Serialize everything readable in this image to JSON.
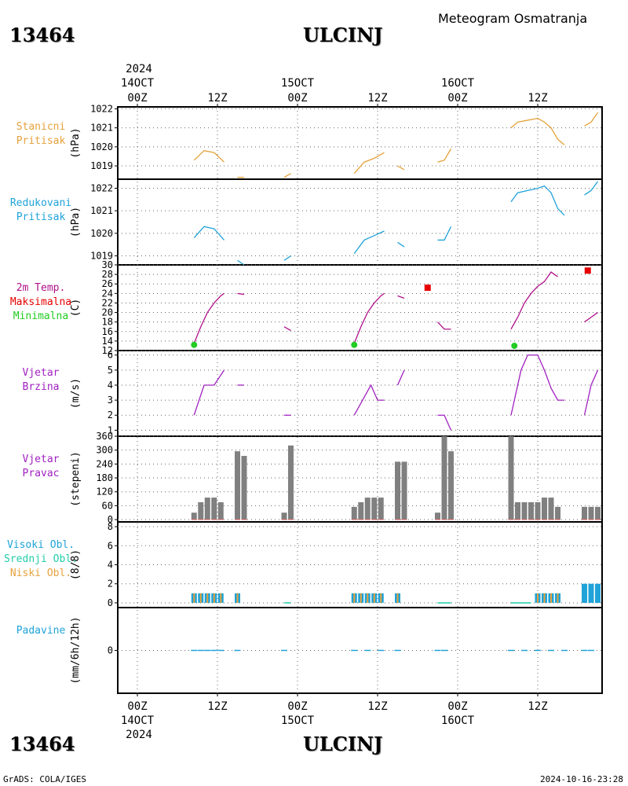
{
  "header": {
    "station_id": "13464",
    "station_name": "ULCINJ",
    "meteogram_title": "Meteogram Osmatranja",
    "year": "2024",
    "footer_left": "GrADS: COLA/IGES",
    "footer_right": "2024-10-16-23:28"
  },
  "time_axis": {
    "hour_labels": [
      "00Z",
      "12Z",
      "00Z",
      "12Z",
      "00Z",
      "12Z"
    ],
    "date_labels": [
      "14OCT",
      "15OCT",
      "16OCT"
    ],
    "year": "2024"
  },
  "colors": {
    "pressure": "#e6a23c",
    "reduced": "#1fa3d8",
    "temp": "#b0108a",
    "tmax": "#e60000",
    "tmin": "#22cc22",
    "wind": "#a020c0",
    "dir_bar": "#808080",
    "cloud_high": "#1fa3d8",
    "cloud_mid": "#22ccaa",
    "cloud_low": "#e6a23c",
    "precip": "#1fa3d8"
  },
  "chart_data": [
    {
      "type": "line",
      "panel": "pressure",
      "label_lines": [
        "Stanicni",
        "Pritisak"
      ],
      "unit": "(hPa)",
      "ylim": [
        1018.3,
        1022.1
      ],
      "yticks": [
        1019,
        1020,
        1021,
        1022
      ],
      "segments": [
        [
          [
            8.5,
            1019.3
          ],
          [
            10,
            1019.8
          ],
          [
            11.5,
            1019.7
          ],
          [
            13,
            1019.2
          ]
        ],
        [
          [
            15,
            1018.4
          ],
          [
            16,
            1018.4
          ]
        ],
        [
          [
            22,
            1018.4
          ],
          [
            23,
            1018.6
          ]
        ],
        [
          [
            32.5,
            1018.6
          ],
          [
            34,
            1019.2
          ],
          [
            35.5,
            1019.4
          ],
          [
            37,
            1019.7
          ]
        ],
        [
          [
            39,
            1019.0
          ],
          [
            40,
            1018.8
          ]
        ],
        [
          [
            45,
            1019.2
          ],
          [
            46,
            1019.3
          ],
          [
            47,
            1019.9
          ]
        ],
        [
          [
            56,
            1021.0
          ],
          [
            57,
            1021.3
          ],
          [
            58.5,
            1021.4
          ],
          [
            60,
            1021.5
          ],
          [
            61,
            1021.3
          ],
          [
            62,
            1021.0
          ],
          [
            63,
            1020.4
          ],
          [
            64,
            1020.1
          ]
        ],
        [
          [
            67,
            1021.1
          ],
          [
            68,
            1021.3
          ],
          [
            69,
            1021.8
          ]
        ]
      ]
    },
    {
      "type": "line",
      "panel": "reduced",
      "label_lines": [
        "Redukovani",
        "Pritisak"
      ],
      "unit": "(hPa)",
      "ylim": [
        1018.6,
        1022.4
      ],
      "yticks": [
        1019,
        1020,
        1021,
        1022
      ],
      "segments": [
        [
          [
            8.5,
            1019.8
          ],
          [
            10,
            1020.3
          ],
          [
            11.5,
            1020.2
          ],
          [
            13,
            1019.7
          ]
        ],
        [
          [
            15,
            1018.8
          ],
          [
            16,
            1018.6
          ]
        ],
        [
          [
            22,
            1018.8
          ],
          [
            23,
            1019.0
          ]
        ],
        [
          [
            32.5,
            1019.1
          ],
          [
            34,
            1019.7
          ],
          [
            35.5,
            1019.9
          ],
          [
            37,
            1020.1
          ]
        ],
        [
          [
            39,
            1019.6
          ],
          [
            40,
            1019.4
          ]
        ],
        [
          [
            45,
            1019.7
          ],
          [
            46,
            1019.7
          ],
          [
            47,
            1020.3
          ]
        ],
        [
          [
            56,
            1021.4
          ],
          [
            57,
            1021.8
          ],
          [
            58.5,
            1021.9
          ],
          [
            60,
            1022.0
          ],
          [
            61,
            1022.1
          ],
          [
            62,
            1021.8
          ],
          [
            63,
            1021.1
          ],
          [
            64,
            1020.8
          ]
        ],
        [
          [
            67,
            1021.7
          ],
          [
            68,
            1021.9
          ],
          [
            69,
            1022.3
          ]
        ]
      ]
    },
    {
      "type": "line",
      "panel": "temperature",
      "label_lines": [
        "2m Temp.",
        "Maksimalna",
        "Minimalna"
      ],
      "unit": "(C)",
      "ylim": [
        12,
        30
      ],
      "yticks": [
        12,
        14,
        16,
        18,
        20,
        22,
        24,
        26,
        28,
        30
      ],
      "segments": [
        [
          [
            8.5,
            13.5
          ],
          [
            9.5,
            17
          ],
          [
            10.5,
            20
          ],
          [
            11.5,
            22
          ],
          [
            12.5,
            23.5
          ],
          [
            13,
            24
          ]
        ],
        [
          [
            15,
            24
          ],
          [
            16,
            23.8
          ]
        ],
        [
          [
            22,
            17
          ],
          [
            23,
            16.2
          ]
        ],
        [
          [
            32.5,
            13.5
          ],
          [
            33.5,
            17
          ],
          [
            34.5,
            20
          ],
          [
            35.5,
            22
          ],
          [
            36.5,
            23.5
          ],
          [
            37,
            24
          ]
        ],
        [
          [
            39,
            23.5
          ],
          [
            40,
            23
          ]
        ],
        [
          [
            45,
            18
          ],
          [
            46,
            16.5
          ],
          [
            47,
            16.5
          ]
        ],
        [
          [
            56,
            16.5
          ],
          [
            57,
            19
          ],
          [
            58,
            22
          ],
          [
            59,
            24
          ],
          [
            60,
            25.5
          ],
          [
            61,
            26.5
          ],
          [
            62,
            28.5
          ],
          [
            63,
            27.5
          ]
        ],
        [
          [
            67,
            18
          ],
          [
            68,
            19
          ],
          [
            69,
            20
          ]
        ]
      ],
      "tmax": [
        [
          43.5,
          25.2
        ],
        [
          67.5,
          28.8
        ]
      ],
      "tmin": [
        [
          8.5,
          13.2
        ],
        [
          32.5,
          13.2
        ],
        [
          56.5,
          13.0
        ]
      ]
    },
    {
      "type": "line",
      "panel": "wind_speed",
      "label_lines": [
        "Vjetar",
        "Brzina"
      ],
      "unit": "(m/s)",
      "ylim": [
        0.6,
        6.3
      ],
      "yticks": [
        1,
        2,
        3,
        4,
        5,
        6
      ],
      "segments": [
        [
          [
            8.5,
            2
          ],
          [
            10,
            4
          ],
          [
            11.5,
            4
          ],
          [
            13,
            5
          ]
        ],
        [
          [
            15,
            4
          ],
          [
            16,
            4
          ]
        ],
        [
          [
            22,
            2
          ],
          [
            23,
            2
          ]
        ],
        [
          [
            32.5,
            2
          ],
          [
            34,
            3.2
          ],
          [
            35,
            4
          ],
          [
            36,
            3
          ],
          [
            37,
            3
          ]
        ],
        [
          [
            39,
            4
          ],
          [
            40,
            5
          ]
        ],
        [
          [
            45,
            2
          ],
          [
            46,
            2
          ],
          [
            47,
            1
          ]
        ],
        [
          [
            56,
            2
          ],
          [
            57.5,
            5
          ],
          [
            58.5,
            6
          ],
          [
            60,
            6
          ],
          [
            61,
            5
          ],
          [
            62,
            3.8
          ],
          [
            63,
            3
          ],
          [
            64,
            3
          ]
        ],
        [
          [
            67,
            2
          ],
          [
            68,
            4
          ],
          [
            69,
            5
          ]
        ]
      ]
    },
    {
      "type": "bar",
      "panel": "wind_direction",
      "label_lines": [
        "Vjetar",
        "Pravac"
      ],
      "unit": "(stepeni)",
      "ylim": [
        -10,
        360
      ],
      "yticks": [
        0,
        60,
        120,
        180,
        240,
        300,
        360
      ],
      "x": [
        8.5,
        9.5,
        10.5,
        11.5,
        12.5,
        15,
        16,
        22,
        23,
        32.5,
        33.5,
        34.5,
        35.5,
        36.5,
        39,
        40,
        45,
        46,
        47,
        56,
        57,
        58,
        59,
        60,
        61,
        62,
        63,
        67,
        68,
        69
      ],
      "values": [
        30,
        75,
        95,
        95,
        75,
        295,
        275,
        30,
        320,
        55,
        75,
        95,
        95,
        95,
        250,
        250,
        30,
        360,
        295,
        360,
        75,
        75,
        75,
        75,
        95,
        95,
        55,
        55,
        55,
        55
      ]
    },
    {
      "type": "bar",
      "panel": "clouds",
      "label_lines": [
        "Visoki Obl.",
        "Srednji Obl.",
        "Niski Obl."
      ],
      "unit": "(8/8)",
      "ylim": [
        -0.5,
        8.5
      ],
      "yticks": [
        0,
        2,
        4,
        6,
        8
      ],
      "x": [
        8.5,
        9.5,
        10.5,
        11.5,
        12.5,
        15,
        32.5,
        33.5,
        34.5,
        35.5,
        36.5,
        39,
        60,
        61,
        62,
        63,
        67,
        68,
        69
      ],
      "values": [
        1,
        1,
        1,
        1,
        1,
        1,
        1,
        1,
        1,
        1,
        1,
        1,
        1,
        1,
        1,
        1,
        2,
        2,
        2
      ]
    },
    {
      "type": "bar",
      "panel": "precip",
      "label_lines": [
        "Padavine"
      ],
      "unit": "(mm/6h/12h)",
      "ylim": [
        -1,
        1
      ],
      "yticks": [
        0
      ],
      "x": [
        8.5,
        9.5,
        10.5,
        11.5,
        12.5,
        15,
        22,
        32.5,
        34.5,
        36.5,
        39,
        45,
        46,
        56,
        58,
        60,
        62,
        64,
        67,
        68
      ],
      "values": [
        0,
        0,
        0,
        0,
        0,
        0,
        0,
        0,
        0,
        0,
        0,
        0,
        0,
        0,
        0,
        0,
        0,
        0,
        0,
        0
      ]
    }
  ]
}
